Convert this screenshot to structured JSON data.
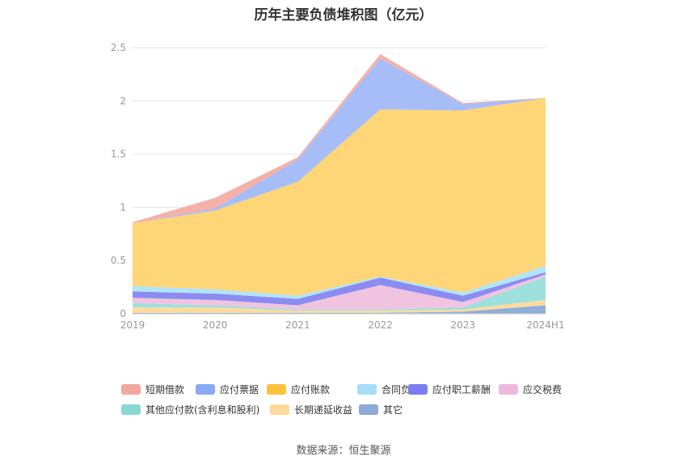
{
  "chart_data": {
    "type": "area",
    "stacked": true,
    "title": "历年主要负债堆积图（亿元）",
    "categories": [
      "2019",
      "2020",
      "2021",
      "2022",
      "2023",
      "2024H1"
    ],
    "yticks": [
      "0",
      "0.5",
      "1",
      "1.5",
      "2",
      "2.5"
    ],
    "ylim": [
      0,
      2.5
    ],
    "grid": true,
    "legend_position": "bottom",
    "series": [
      {
        "name": "其它",
        "color": "#8eaedb",
        "values": [
          0.01,
          0.01,
          0.01,
          0.01,
          0.02,
          0.08
        ]
      },
      {
        "name": "长期递延收益",
        "color": "#fddb9e",
        "values": [
          0.05,
          0.05,
          0.02,
          0.02,
          0.02,
          0.05
        ]
      },
      {
        "name": "其他应付款(含利息和股利)",
        "color": "#9ee0dc",
        "values": [
          0.04,
          0.02,
          0.01,
          0.01,
          0.02,
          0.22
        ]
      },
      {
        "name": "应交税费",
        "color": "#f0c4e0",
        "values": [
          0.05,
          0.05,
          0.04,
          0.23,
          0.05,
          0.02
        ]
      },
      {
        "name": "应付职工薪酬",
        "color": "#8c8cf0",
        "values": [
          0.06,
          0.06,
          0.06,
          0.07,
          0.06,
          0.02
        ]
      },
      {
        "name": "合同负债",
        "color": "#b0e4fa",
        "values": [
          0.05,
          0.04,
          0.03,
          0.01,
          0.03,
          0.06
        ]
      },
      {
        "name": "应付账款",
        "color": "#fed577",
        "values": [
          0.59,
          0.74,
          1.07,
          1.57,
          1.71,
          1.58
        ]
      },
      {
        "name": "应付票据",
        "color": "#a7bdf7",
        "values": [
          0.0,
          0.02,
          0.21,
          0.48,
          0.06,
          0.0
        ]
      },
      {
        "name": "短期借款",
        "color": "#f5b0a8",
        "values": [
          0.01,
          0.1,
          0.02,
          0.04,
          0.01,
          0.0
        ]
      }
    ]
  },
  "legend": [
    {
      "label": "短期借款",
      "color": "#f4a79c"
    },
    {
      "label": "应付票据",
      "color": "#8aa8f5"
    },
    {
      "label": "应付账款",
      "color": "#fcc23d"
    },
    {
      "label": "合同负债",
      "color": "#a7dcfa"
    },
    {
      "label": "应付职工薪酬",
      "color": "#7c7cf2"
    },
    {
      "label": "应交税费",
      "color": "#ecb9dd"
    },
    {
      "label": "其他应付款(含利息和股利)",
      "color": "#88d8d4"
    },
    {
      "label": "长期递延收益",
      "color": "#fcd99b"
    },
    {
      "label": "其它",
      "color": "#8eaad8"
    }
  ],
  "source": "数据来源：恒生聚源"
}
